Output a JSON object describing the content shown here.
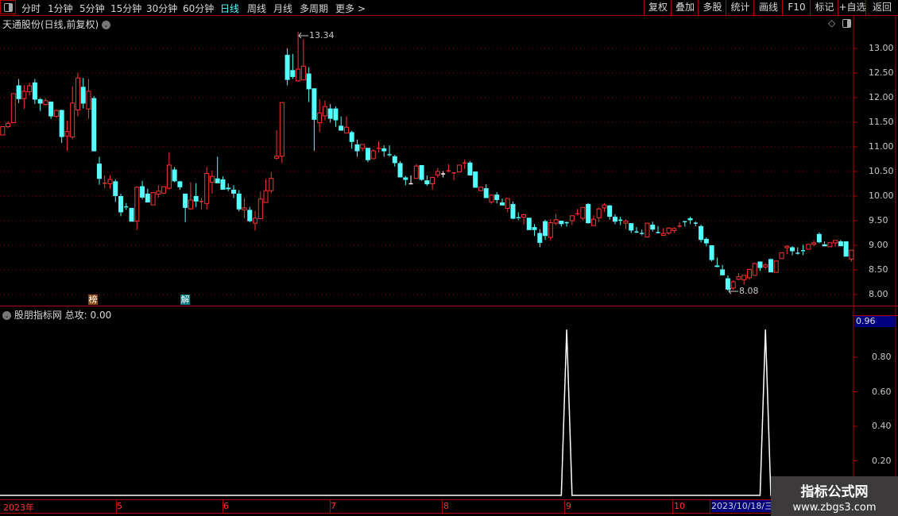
{
  "toolbar": {
    "periods": [
      "分时",
      "1分钟",
      "5分钟",
      "15分钟",
      "30分钟",
      "60分钟",
      "日线",
      "周线",
      "月线",
      "多周期",
      "更多 >"
    ],
    "active_period": "日线",
    "buttons": [
      "复权",
      "叠加",
      "多股",
      "统计",
      "画线",
      "F10",
      "标记",
      "+自选",
      "返回"
    ]
  },
  "main_chart": {
    "title": "天通股份(日线,前复权)",
    "price_axis": [
      "13.00",
      "12.50",
      "12.00",
      "11.50",
      "11.00",
      "10.50",
      "10.00",
      "9.50",
      "9.00",
      "8.50",
      "8.00"
    ],
    "high_label": "13.34",
    "low_label": "8.08",
    "markers": [
      {
        "text": "榜",
        "color": "#8b4513"
      },
      {
        "text": "解",
        "color": "#008080"
      }
    ]
  },
  "indicator": {
    "title": "股朋指标网",
    "value_label": "总攻: 0.00",
    "axis": [
      "0.80",
      "0.60",
      "0.40",
      "0.20"
    ],
    "current_value": "0.96",
    "signal_indices": [
      105,
      142
    ],
    "signal_value": 0.96
  },
  "date_axis": {
    "labels": [
      "2023年",
      "5",
      "6",
      "7",
      "8",
      "9",
      "10"
    ],
    "cursor_date": "2023/10/18/三"
  },
  "watermark": {
    "title": "指标公式网",
    "url": "www.zbgs3.com"
  },
  "colors": {
    "up": "#ff3232",
    "down": "#54ffff",
    "flat": "#ffffff",
    "grid": "#8b0000",
    "border": "#b00000",
    "cursor_bg": "#00007f"
  },
  "chart_data": {
    "type": "candlestick",
    "ohlc_order": [
      "open",
      "high",
      "low",
      "close"
    ],
    "ylim": [
      8.0,
      13.0
    ],
    "candles": [
      [
        11.24,
        11.41,
        11.24,
        11.41
      ],
      [
        11.41,
        11.52,
        11.38,
        11.48
      ],
      [
        11.49,
        12.08,
        11.49,
        12.08
      ],
      [
        12.25,
        12.38,
        11.89,
        11.97
      ],
      [
        11.98,
        12.26,
        11.77,
        12.13
      ],
      [
        12.12,
        12.31,
        12.04,
        12.24
      ],
      [
        12.31,
        12.38,
        11.87,
        11.96
      ],
      [
        11.97,
        11.99,
        11.73,
        11.88
      ],
      [
        11.86,
        11.99,
        11.84,
        11.94
      ],
      [
        11.92,
        11.92,
        11.57,
        11.62
      ],
      [
        11.62,
        11.76,
        11.59,
        11.74
      ],
      [
        11.75,
        11.75,
        11.08,
        11.2
      ],
      [
        11.22,
        11.53,
        10.92,
        11.31
      ],
      [
        11.2,
        12.23,
        11.15,
        11.89
      ],
      [
        11.75,
        12.51,
        11.62,
        12.4
      ],
      [
        12.22,
        12.4,
        11.78,
        11.88
      ],
      [
        11.77,
        12.38,
        11.57,
        12.13
      ],
      [
        11.99,
        12.03,
        10.91,
        10.91
      ],
      [
        10.66,
        10.8,
        10.23,
        10.35
      ],
      [
        10.24,
        10.42,
        10.16,
        10.26
      ],
      [
        10.25,
        10.42,
        10.15,
        10.34
      ],
      [
        10.3,
        10.34,
        9.88,
        10.0
      ],
      [
        10.0,
        10.05,
        9.59,
        9.67
      ],
      [
        9.78,
        9.86,
        9.72,
        9.76
      ],
      [
        9.76,
        9.76,
        9.48,
        9.48
      ],
      [
        9.49,
        10.2,
        9.31,
        10.18
      ],
      [
        10.2,
        10.31,
        9.94,
        9.97
      ],
      [
        10.05,
        10.15,
        9.87,
        9.87
      ],
      [
        9.82,
        10.07,
        9.82,
        10.07
      ],
      [
        10.04,
        10.22,
        9.97,
        10.1
      ],
      [
        10.06,
        10.19,
        10.04,
        10.19
      ],
      [
        10.16,
        10.89,
        10.13,
        10.63
      ],
      [
        10.54,
        10.59,
        10.28,
        10.3
      ],
      [
        10.3,
        10.31,
        10.13,
        10.18
      ],
      [
        10.05,
        10.05,
        9.47,
        9.76
      ],
      [
        9.74,
        10.28,
        9.72,
        9.92
      ],
      [
        10.0,
        10.26,
        9.78,
        9.89
      ],
      [
        9.88,
        9.96,
        9.73,
        9.89
      ],
      [
        9.85,
        10.59,
        9.73,
        10.46
      ],
      [
        10.28,
        10.52,
        10.05,
        10.4
      ],
      [
        10.36,
        10.8,
        10.26,
        10.26
      ],
      [
        10.34,
        10.4,
        10.13,
        10.13
      ],
      [
        10.17,
        10.26,
        10.1,
        10.14
      ],
      [
        10.13,
        10.22,
        9.96,
        10.05
      ],
      [
        10.05,
        10.12,
        9.69,
        9.73
      ],
      [
        9.72,
        9.96,
        9.55,
        9.76
      ],
      [
        9.72,
        9.78,
        9.47,
        9.49
      ],
      [
        9.45,
        9.7,
        9.3,
        9.55
      ],
      [
        9.54,
        10.09,
        9.54,
        9.94
      ],
      [
        9.87,
        10.34,
        9.87,
        10.11
      ],
      [
        10.11,
        10.49,
        10.06,
        10.36
      ],
      [
        10.77,
        11.34,
        10.74,
        10.81
      ],
      [
        10.81,
        11.9,
        10.67,
        11.9
      ],
      [
        12.87,
        13.0,
        12.25,
        12.36
      ],
      [
        12.56,
        12.89,
        12.38,
        12.42
      ],
      [
        12.34,
        13.34,
        12.33,
        12.58
      ],
      [
        12.36,
        13.19,
        12.36,
        12.64
      ],
      [
        12.49,
        12.62,
        11.91,
        12.17
      ],
      [
        12.19,
        12.19,
        10.92,
        11.55
      ],
      [
        11.49,
        11.97,
        11.3,
        11.69
      ],
      [
        11.63,
        11.94,
        11.54,
        11.82
      ],
      [
        11.78,
        11.87,
        11.49,
        11.57
      ],
      [
        11.78,
        11.82,
        11.41,
        11.54
      ],
      [
        11.43,
        11.62,
        11.33,
        11.33
      ],
      [
        11.28,
        11.62,
        11.28,
        11.4
      ],
      [
        11.3,
        11.33,
        10.96,
        11.1
      ],
      [
        11.05,
        11.15,
        10.8,
        10.91
      ],
      [
        10.97,
        11.05,
        10.91,
        11.05
      ],
      [
        10.98,
        10.98,
        10.69,
        10.73
      ],
      [
        10.76,
        10.95,
        10.75,
        10.92
      ],
      [
        10.95,
        11.11,
        10.88,
        10.97
      ],
      [
        10.97,
        11.03,
        10.8,
        10.91
      ],
      [
        10.84,
        11.03,
        10.8,
        10.82
      ],
      [
        10.81,
        10.84,
        10.6,
        10.67
      ],
      [
        10.67,
        10.71,
        10.38,
        10.38
      ],
      [
        10.38,
        10.41,
        10.22,
        10.33
      ],
      [
        10.25,
        10.42,
        10.25,
        10.25
      ],
      [
        10.36,
        10.65,
        10.36,
        10.61
      ],
      [
        10.63,
        10.63,
        10.31,
        10.33
      ],
      [
        10.32,
        10.42,
        10.21,
        10.24
      ],
      [
        10.25,
        10.38,
        10.13,
        10.38
      ],
      [
        10.43,
        10.57,
        10.38,
        10.5
      ],
      [
        10.45,
        10.51,
        10.38,
        10.45
      ],
      [
        10.49,
        10.65,
        10.47,
        10.51
      ],
      [
        10.45,
        10.47,
        10.32,
        10.47
      ],
      [
        10.49,
        10.63,
        10.49,
        10.63
      ],
      [
        10.65,
        10.74,
        10.55,
        10.67
      ],
      [
        10.68,
        10.71,
        10.42,
        10.42
      ],
      [
        10.5,
        10.5,
        10.17,
        10.17
      ],
      [
        10.11,
        10.19,
        10.1,
        10.18
      ],
      [
        10.16,
        10.24,
        9.96,
        9.96
      ],
      [
        9.88,
        10.02,
        9.84,
        10.02
      ],
      [
        10.03,
        10.08,
        9.85,
        9.92
      ],
      [
        9.87,
        9.95,
        9.81,
        9.81
      ],
      [
        9.75,
        9.95,
        9.67,
        9.95
      ],
      [
        9.84,
        9.89,
        9.53,
        9.54
      ],
      [
        9.56,
        9.67,
        9.51,
        9.54
      ],
      [
        9.57,
        9.64,
        9.42,
        9.62
      ],
      [
        9.56,
        9.56,
        9.31,
        9.31
      ],
      [
        9.37,
        9.43,
        9.19,
        9.31
      ],
      [
        9.25,
        9.33,
        8.96,
        9.05
      ],
      [
        9.49,
        9.52,
        9.11,
        9.19
      ],
      [
        9.16,
        9.53,
        9.1,
        9.46
      ],
      [
        9.45,
        9.64,
        9.41,
        9.52
      ],
      [
        9.5,
        9.5,
        9.38,
        9.43
      ],
      [
        9.46,
        9.48,
        9.38,
        9.45
      ],
      [
        9.5,
        9.6,
        9.41,
        9.6
      ],
      [
        9.62,
        9.74,
        9.6,
        9.64
      ],
      [
        9.55,
        9.77,
        9.5,
        9.77
      ],
      [
        9.84,
        9.86,
        9.44,
        9.45
      ],
      [
        9.4,
        9.61,
        9.4,
        9.53
      ],
      [
        9.56,
        9.77,
        9.47,
        9.74
      ],
      [
        9.76,
        9.86,
        9.68,
        9.82
      ],
      [
        9.81,
        9.82,
        9.52,
        9.58
      ],
      [
        9.58,
        9.63,
        9.43,
        9.48
      ],
      [
        9.51,
        9.58,
        9.41,
        9.5
      ],
      [
        9.45,
        9.53,
        9.33,
        9.49
      ],
      [
        9.45,
        9.45,
        9.25,
        9.3
      ],
      [
        9.27,
        9.37,
        9.24,
        9.25
      ],
      [
        9.24,
        9.32,
        9.2,
        9.22
      ],
      [
        9.17,
        9.45,
        9.17,
        9.45
      ],
      [
        9.42,
        9.48,
        9.28,
        9.32
      ],
      [
        9.26,
        9.39,
        9.24,
        9.25
      ],
      [
        9.2,
        9.35,
        9.2,
        9.24
      ],
      [
        9.25,
        9.37,
        9.22,
        9.35
      ],
      [
        9.3,
        9.37,
        9.25,
        9.34
      ],
      [
        9.37,
        9.47,
        9.35,
        9.39
      ],
      [
        9.48,
        9.49,
        9.38,
        9.47
      ],
      [
        9.55,
        9.58,
        9.43,
        9.51
      ],
      [
        9.45,
        9.48,
        9.39,
        9.44
      ],
      [
        9.39,
        9.42,
        9.06,
        9.11
      ],
      [
        9.13,
        9.16,
        8.98,
        9.04
      ],
      [
        9.0,
        9.0,
        8.67,
        8.7
      ],
      [
        8.59,
        8.75,
        8.55,
        8.56
      ],
      [
        8.51,
        8.6,
        8.39,
        8.39
      ],
      [
        8.33,
        8.39,
        8.08,
        8.1
      ],
      [
        8.13,
        8.29,
        8.09,
        8.26
      ],
      [
        8.31,
        8.44,
        8.29,
        8.36
      ],
      [
        8.3,
        8.39,
        8.2,
        8.39
      ],
      [
        8.34,
        8.52,
        8.3,
        8.51
      ],
      [
        8.39,
        8.65,
        8.39,
        8.63
      ],
      [
        8.67,
        8.67,
        8.48,
        8.54
      ],
      [
        8.56,
        8.64,
        8.51,
        8.6
      ],
      [
        8.72,
        8.73,
        8.45,
        8.45
      ],
      [
        8.45,
        8.69,
        8.45,
        8.68
      ],
      [
        8.73,
        8.85,
        8.73,
        8.85
      ],
      [
        8.95,
        9.0,
        8.82,
        8.98
      ],
      [
        8.96,
        8.98,
        8.8,
        8.88
      ],
      [
        8.84,
        8.96,
        8.81,
        8.83
      ],
      [
        8.89,
        9.01,
        8.8,
        8.87
      ],
      [
        8.92,
        9.02,
        8.92,
        9.02
      ],
      [
        9.02,
        9.1,
        8.98,
        9.05
      ],
      [
        9.23,
        9.26,
        9.04,
        9.06
      ],
      [
        9.02,
        9.08,
        8.98,
        8.98
      ],
      [
        8.97,
        9.05,
        8.97,
        9.05
      ],
      [
        9.05,
        9.1,
        8.97,
        9.1
      ],
      [
        9.08,
        9.11,
        8.98,
        8.98
      ],
      [
        9.08,
        9.08,
        8.77,
        8.77
      ],
      [
        8.72,
        8.9,
        8.67,
        8.9
      ]
    ]
  }
}
